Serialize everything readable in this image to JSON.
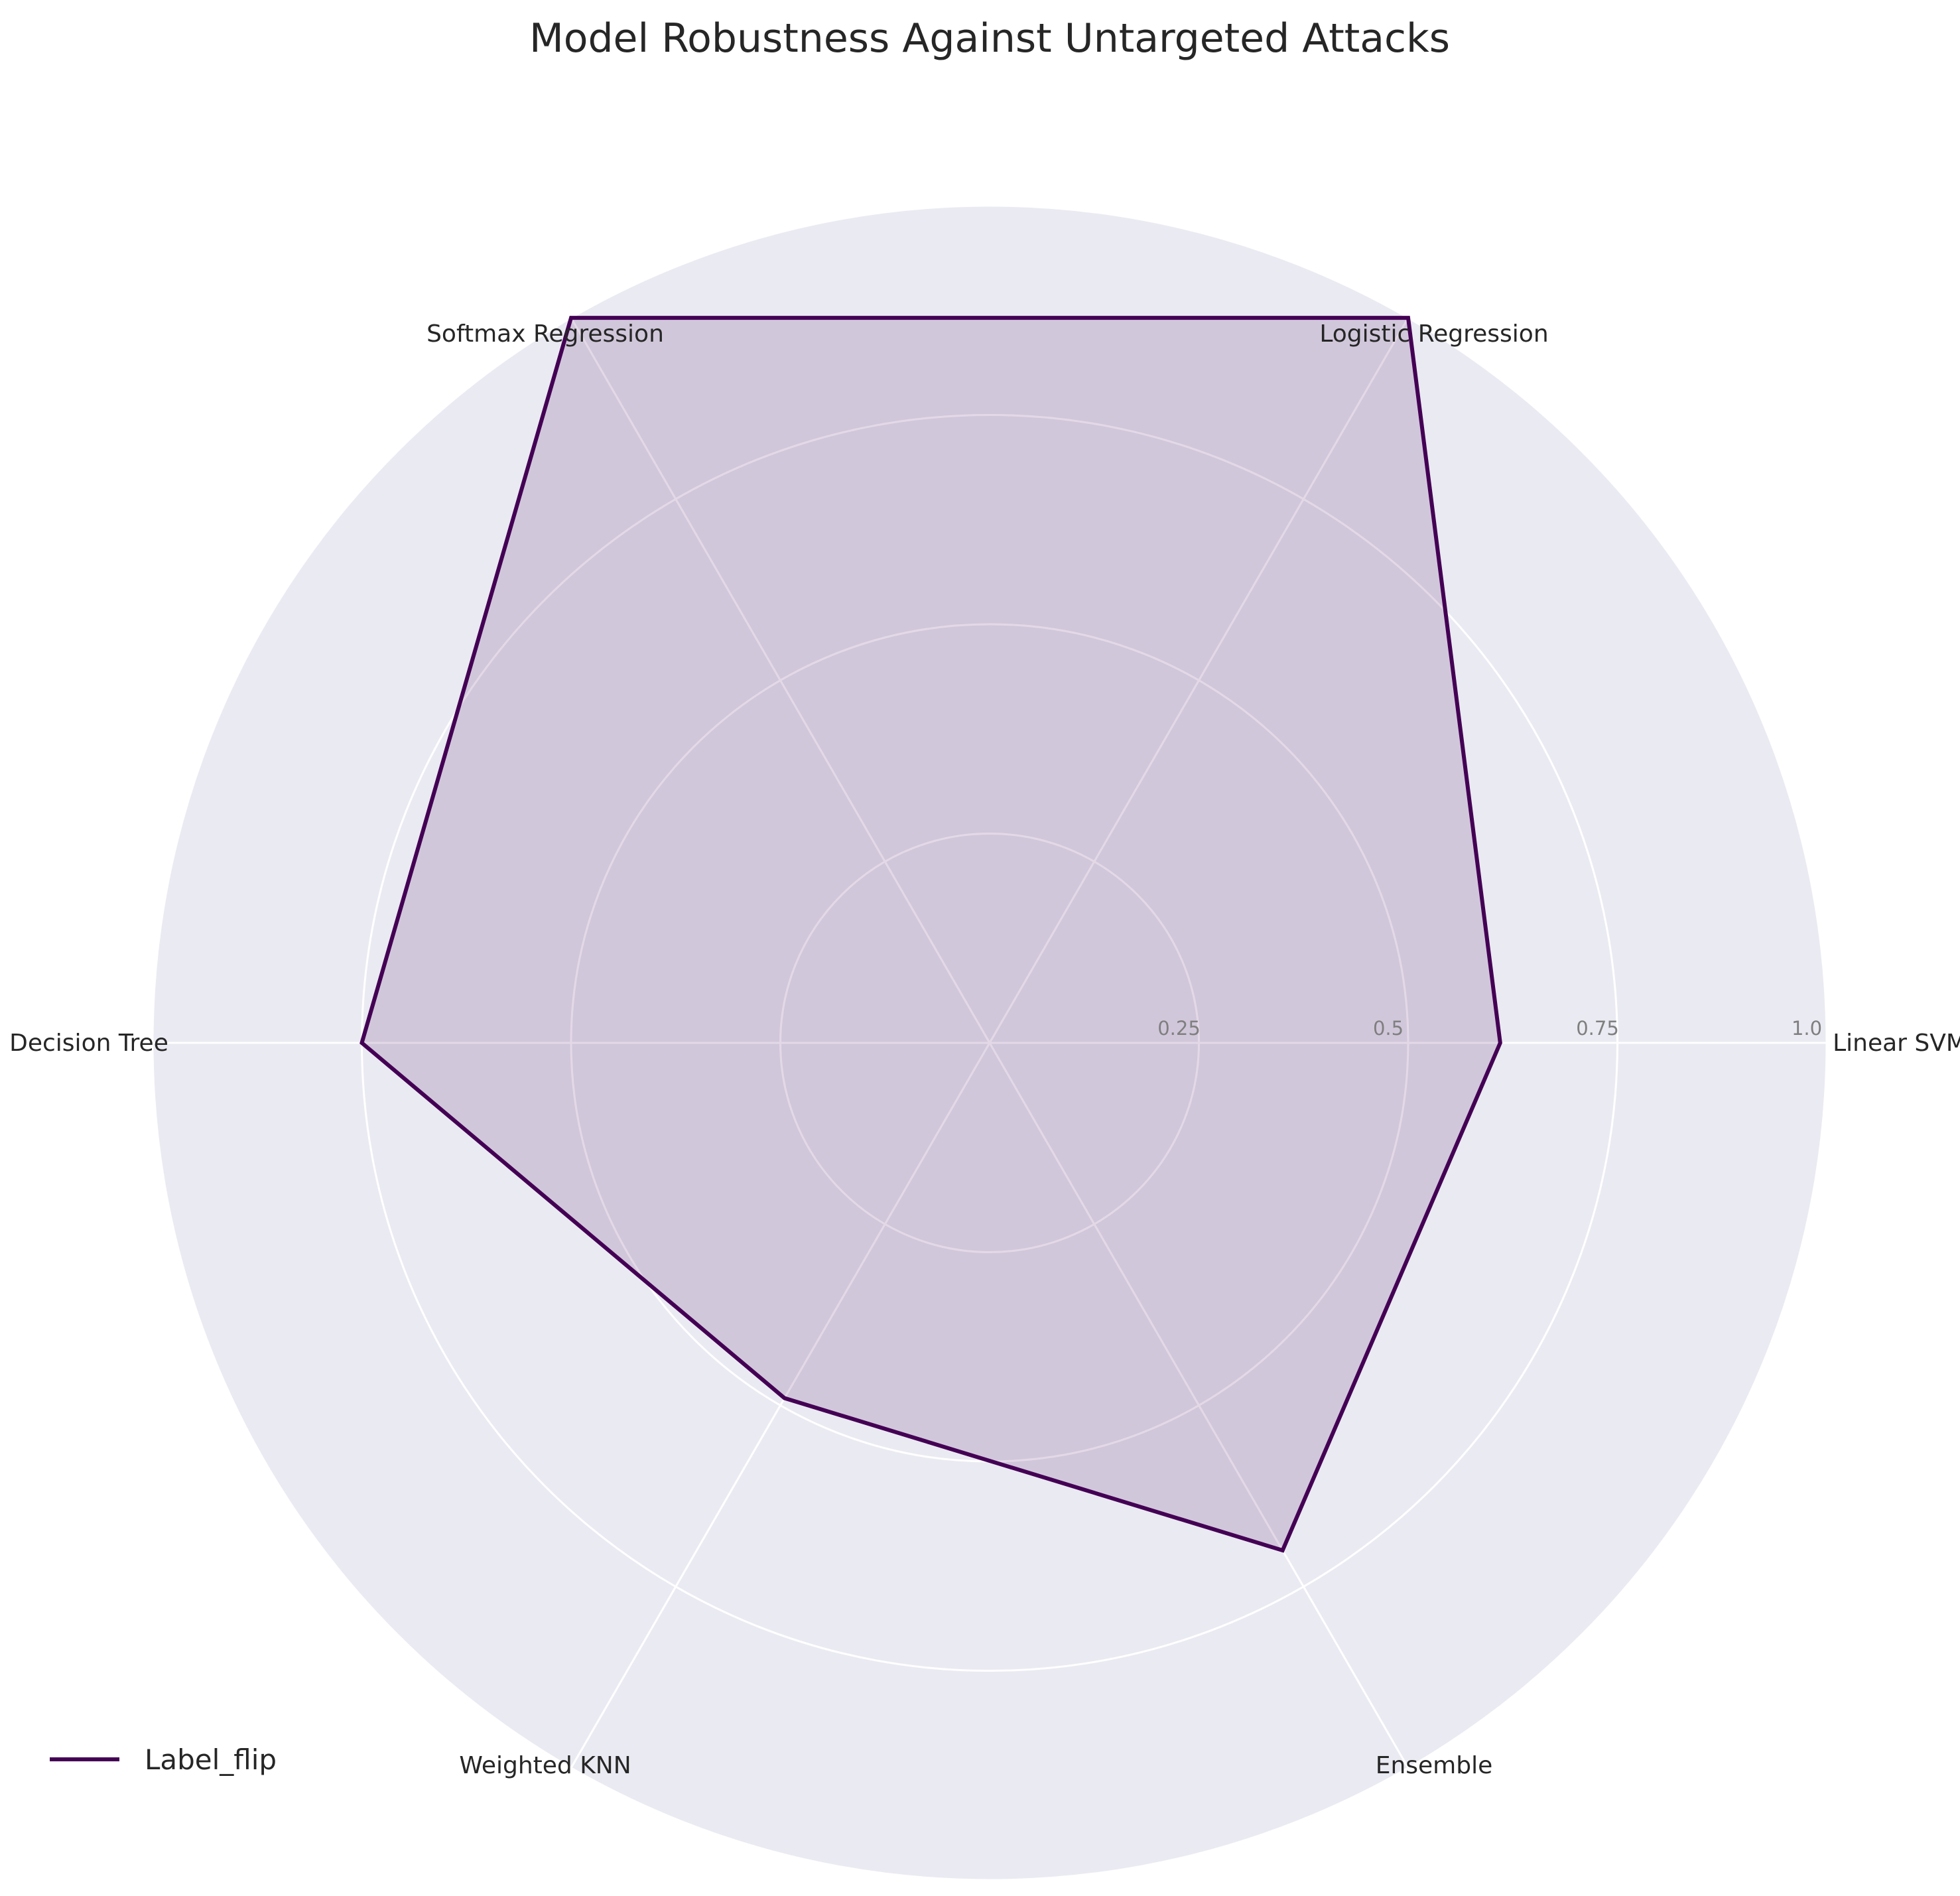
{
  "chart_data": {
    "type": "radar",
    "title": "Model Robustness Against Untargeted Attacks",
    "categories": [
      "Linear SVM",
      "Logistic Regression",
      "Softmax Regression",
      "Decision Tree",
      "Weighted KNN",
      "Ensemble"
    ],
    "series": [
      {
        "name": "Label_flip",
        "values": [
          0.61,
          1.0,
          1.0,
          0.75,
          0.49,
          0.7
        ],
        "color": "#440154",
        "fill_opacity": 0.15
      }
    ],
    "r_ticks": [
      0.25,
      0.5,
      0.75,
      1.0
    ],
    "r_tick_labels": [
      "0.25",
      "0.5",
      "0.75",
      "1.0"
    ],
    "rlim": [
      0,
      1.0
    ],
    "grid": true,
    "legend_position": "lower-left",
    "background_color": "#eaeaf2",
    "grid_color": "#ffffff"
  }
}
